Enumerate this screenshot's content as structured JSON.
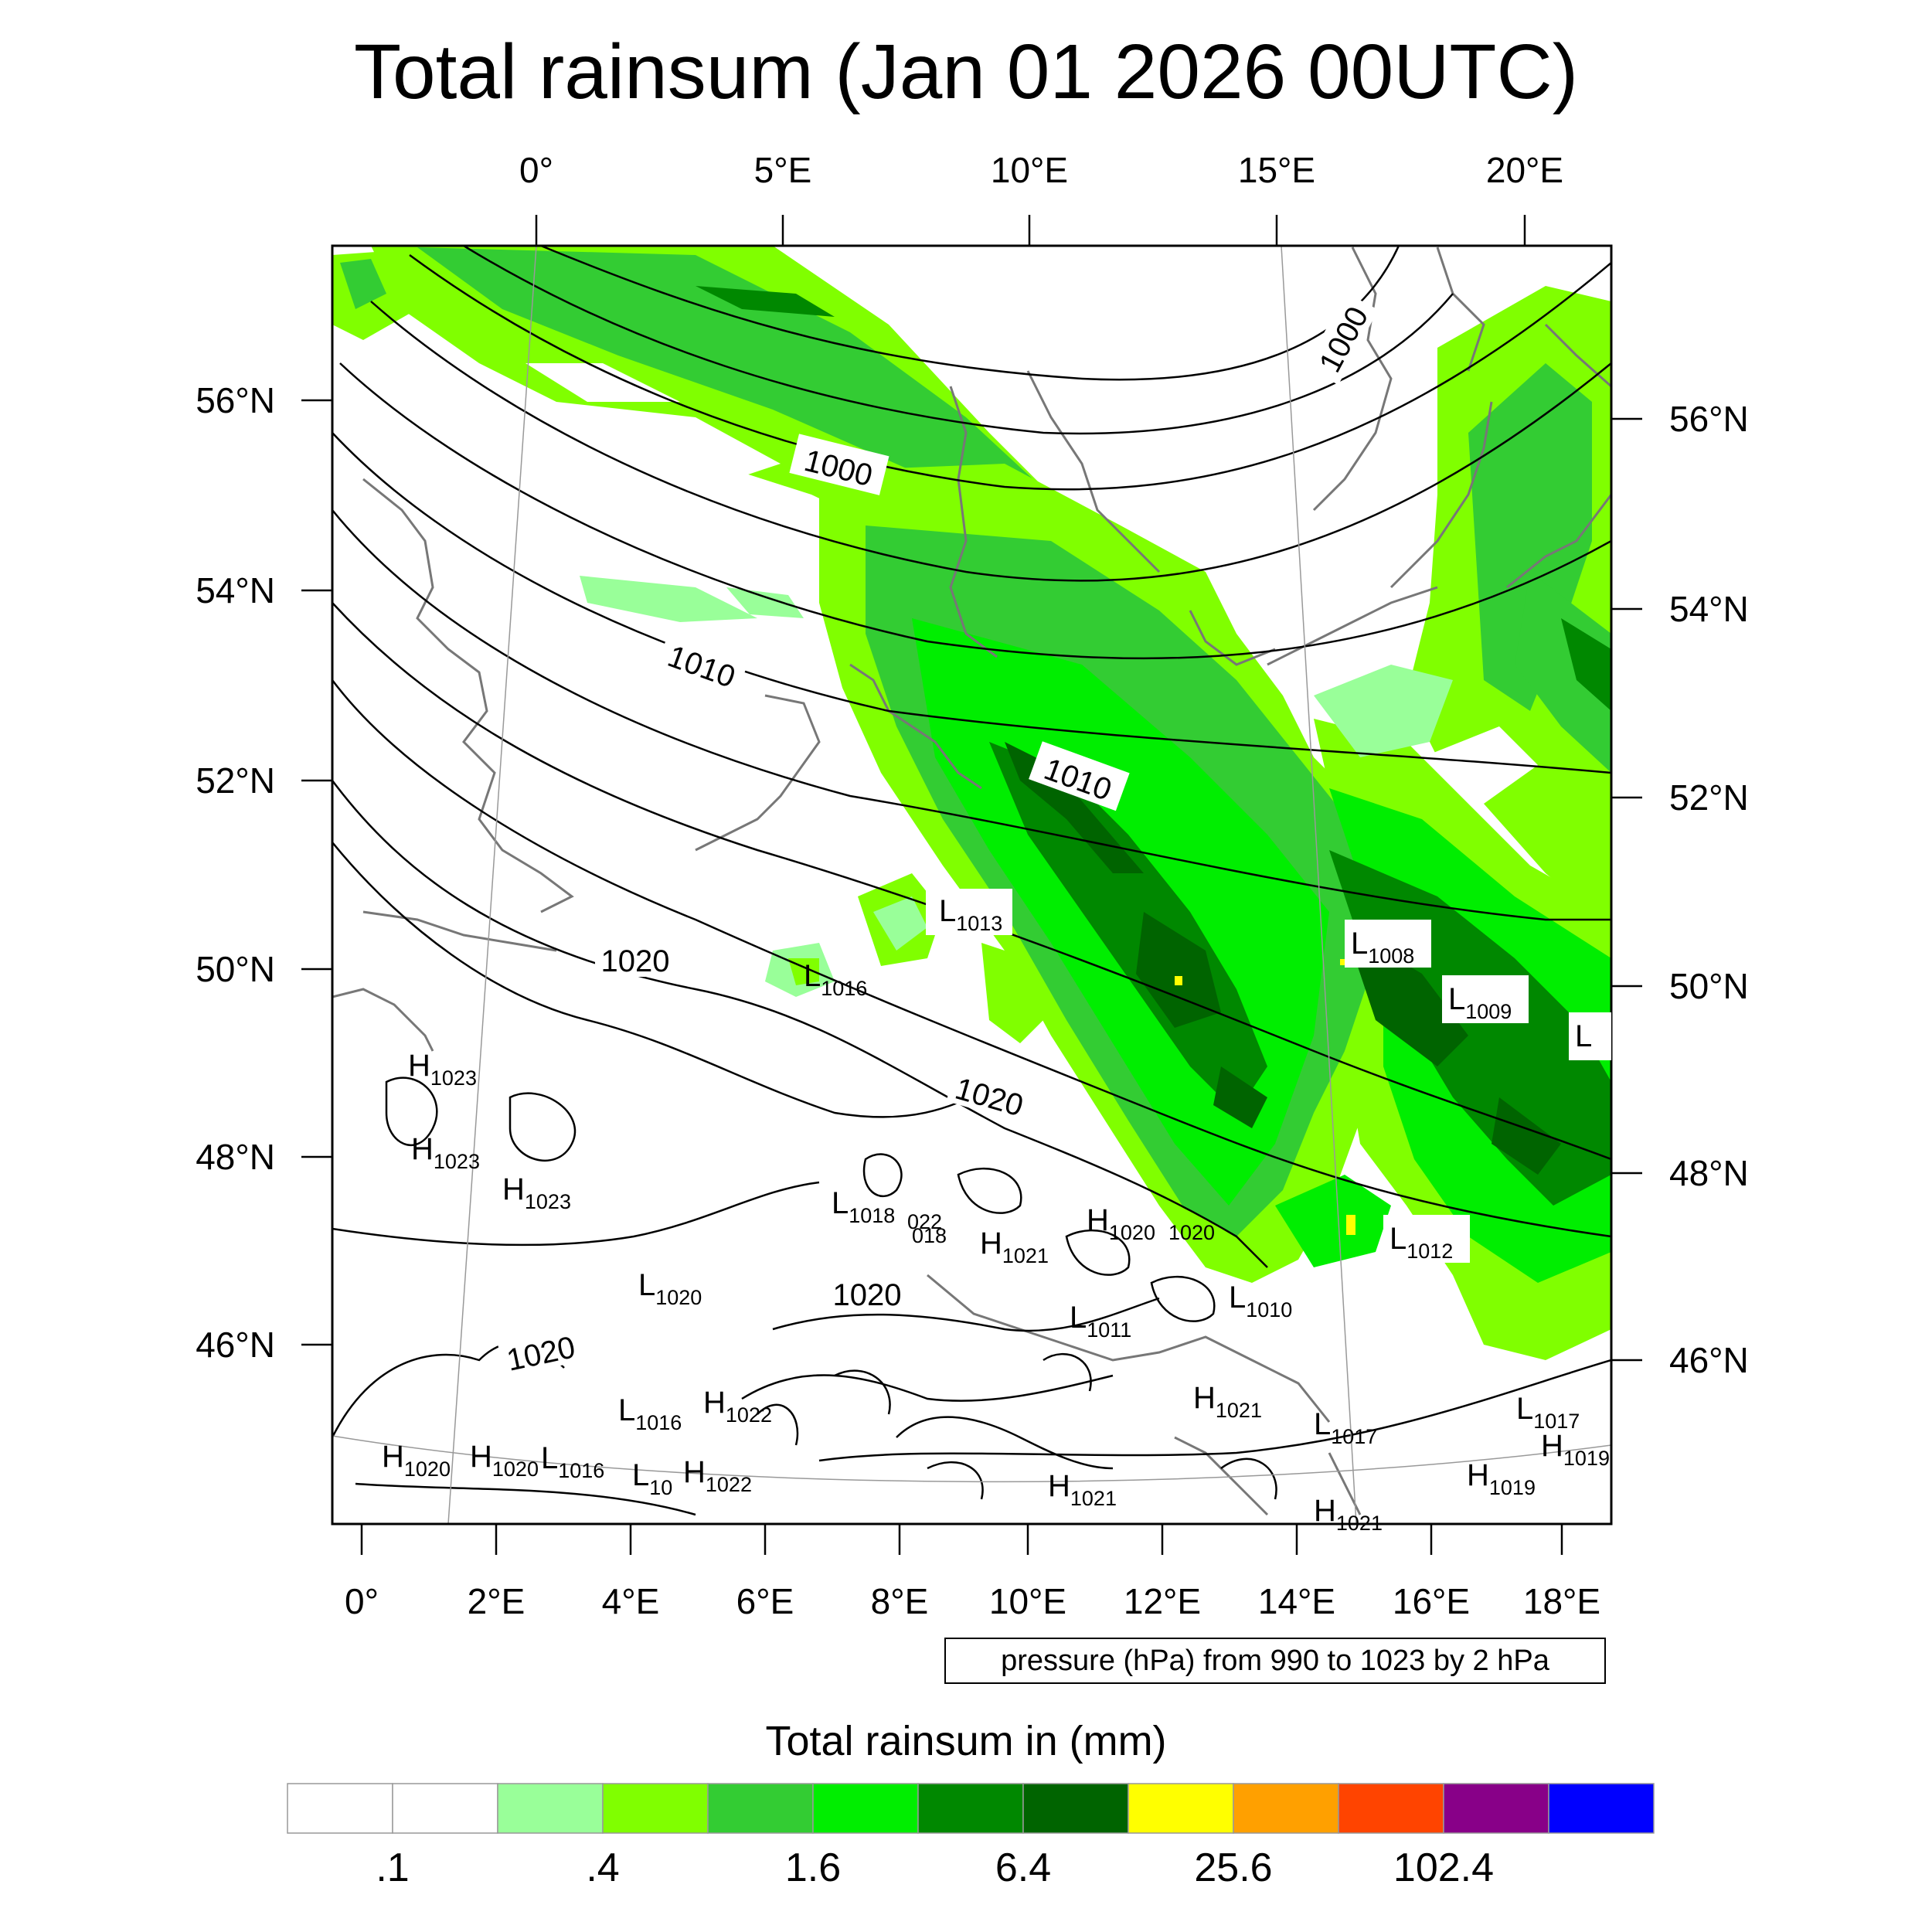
{
  "title": "Total rainsum (Jan 01 2026 00UTC)",
  "axes": {
    "top_lon_labels": [
      "0°",
      "5°E",
      "10°E",
      "15°E",
      "20°E"
    ],
    "bottom_lon_labels": [
      "0°",
      "2°E",
      "4°E",
      "6°E",
      "8°E",
      "10°E",
      "12°E",
      "14°E",
      "16°E",
      "18°E"
    ],
    "left_lat_labels": [
      "56°N",
      "54°N",
      "52°N",
      "50°N",
      "48°N",
      "46°N"
    ],
    "right_lat_labels": [
      "56°N",
      "54°N",
      "52°N",
      "50°N",
      "48°N",
      "46°N"
    ]
  },
  "isobar_labels": [
    "1000",
    "1000",
    "1010",
    "1010",
    "1020",
    "1020",
    "1020",
    "1020"
  ],
  "pressure_centers": [
    {
      "type": "L",
      "value": "1013"
    },
    {
      "type": "L",
      "value": "1016"
    },
    {
      "type": "L",
      "value": "1008"
    },
    {
      "type": "L",
      "value": "1009"
    },
    {
      "type": "L",
      "value": ""
    },
    {
      "type": "L",
      "value": "1012"
    },
    {
      "type": "H",
      "value": "1023"
    },
    {
      "type": "H",
      "value": "1023"
    },
    {
      "type": "H",
      "value": "1023"
    },
    {
      "type": "L",
      "value": "1018"
    },
    {
      "type": "",
      "value": "022"
    },
    {
      "type": "",
      "value": "018"
    },
    {
      "type": "H",
      "value": "1021"
    },
    {
      "type": "H",
      "value": "1020"
    },
    {
      "type": "",
      "value": "1020"
    },
    {
      "type": "L",
      "value": "1020"
    },
    {
      "type": "L",
      "value": "1010"
    },
    {
      "type": "L",
      "value": "1011"
    },
    {
      "type": "L",
      "value": "1016"
    },
    {
      "type": "H",
      "value": "1022"
    },
    {
      "type": "H",
      "value": "1021"
    },
    {
      "type": "L",
      "value": "1017"
    },
    {
      "type": "L",
      "value": "1017"
    },
    {
      "type": "H",
      "value": "1019"
    },
    {
      "type": "H",
      "value": "1019"
    },
    {
      "type": "H",
      "value": "1020"
    },
    {
      "type": "H",
      "value": "1020"
    },
    {
      "type": "L",
      "value": "1016"
    },
    {
      "type": "L",
      "value": "10"
    },
    {
      "type": "H",
      "value": "1022"
    },
    {
      "type": "H",
      "value": "1021"
    },
    {
      "type": "H",
      "value": "1021"
    }
  ],
  "contour_note": "pressure (hPa) from 990 to 1023 by 2 hPa",
  "colorbar": {
    "title": "Total rainsum in (mm)",
    "colors": [
      "#ffffff",
      "#ffffff",
      "#99ff99",
      "#80ff00",
      "#33cc33",
      "#00ee00",
      "#008800",
      "#006400",
      "#ffff00",
      "#ffa000",
      "#ff4400",
      "#880088",
      "#0000ff"
    ],
    "labels": [
      ".1",
      ".4",
      "1.6",
      "6.4",
      "25.6",
      "102.4"
    ]
  }
}
